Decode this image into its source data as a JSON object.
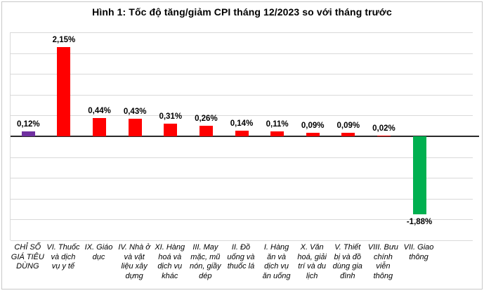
{
  "title": "Hình 1: Tốc độ tăng/giảm CPI tháng 12/2023 so với tháng trước",
  "chart_data": {
    "type": "bar",
    "title": "Hình 1: Tốc độ tăng/giảm CPI tháng 12/2023 so với tháng trước",
    "categories": [
      "CHỈ SỐ GIÁ TIÊU DÙNG",
      "VI. Thuốc và dịch vụ y tế",
      "IX. Giáo dục",
      "IV. Nhà ở và vật liệu xây dựng",
      "XI. Hàng hoá và dịch vụ khác",
      "III. May mặc, mũ nón, giầy dép",
      "II. Đồ uống và thuốc lá",
      "I. Hàng ăn và dịch vụ ăn uống",
      "X. Văn hoá, giải trí và du lịch",
      "V. Thiết bị và đồ dùng gia đình",
      "VIII. Bưu chính viễn thông",
      "VII. Giao thông"
    ],
    "values": [
      0.12,
      2.15,
      0.44,
      0.43,
      0.31,
      0.26,
      0.14,
      0.11,
      0.09,
      0.09,
      0.02,
      -1.88
    ],
    "value_labels": [
      "0,12%",
      "2,15%",
      "0,44%",
      "0,43%",
      "0,31%",
      "0,26%",
      "0,14%",
      "0,11%",
      "0,09%",
      "0,09%",
      "0,02%",
      "-1,88%"
    ],
    "bar_colors": [
      "#7030A0",
      "#FF0000",
      "#FF0000",
      "#FF0000",
      "#FF0000",
      "#FF0000",
      "#FF0000",
      "#FF0000",
      "#FF0000",
      "#FF0000",
      "#FF0000",
      "#00B050"
    ],
    "xlabel": "",
    "ylabel": "",
    "ylim": [
      -2.5,
      2.5
    ],
    "gridline_step": 0.5,
    "grid": true,
    "legend": "none",
    "gridline_color": "#D9D9D9",
    "baseline_color": "#2B2B2B"
  }
}
